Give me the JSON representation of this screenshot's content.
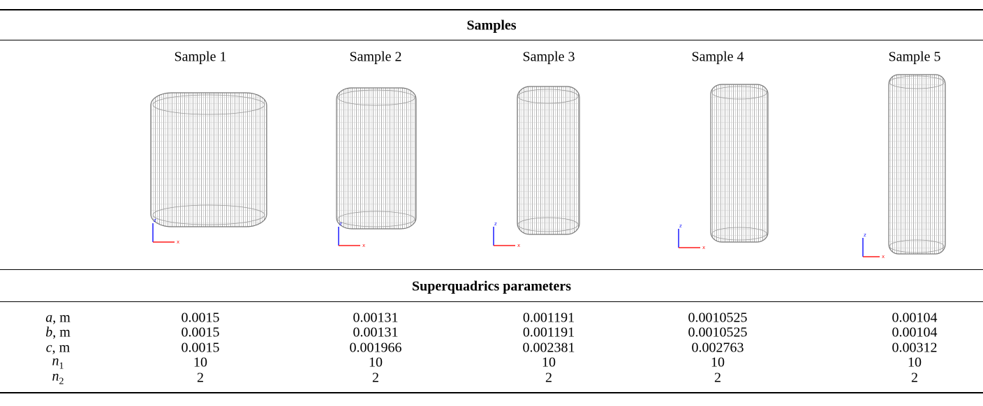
{
  "table": {
    "title": "Samples",
    "columns": [
      "Sample 1",
      "Sample 2",
      "Sample 3",
      "Sample 4",
      "Sample 5"
    ],
    "axis_labels": [
      "z",
      "x"
    ],
    "section": "Superquadrics parameters",
    "rows": [
      {
        "symbol": "a",
        "unit": ", m",
        "values": [
          "0.0015",
          "0.00131",
          "0.001191",
          "0.0010525",
          "0.00104"
        ]
      },
      {
        "symbol": "b",
        "unit": ", m",
        "values": [
          "0.0015",
          "0.00131",
          "0.001191",
          "0.0010525",
          "0.00104"
        ]
      },
      {
        "symbol": "c",
        "unit": ", m",
        "values": [
          "0.0015",
          "0.001966",
          "0.002381",
          "0.002763",
          "0.00312"
        ]
      },
      {
        "symbol": "n",
        "subscript": "1",
        "values": [
          "10",
          "10",
          "10",
          "10",
          "10"
        ]
      },
      {
        "symbol": "n",
        "subscript": "2",
        "values": [
          "2",
          "2",
          "2",
          "2",
          "2"
        ]
      }
    ]
  }
}
